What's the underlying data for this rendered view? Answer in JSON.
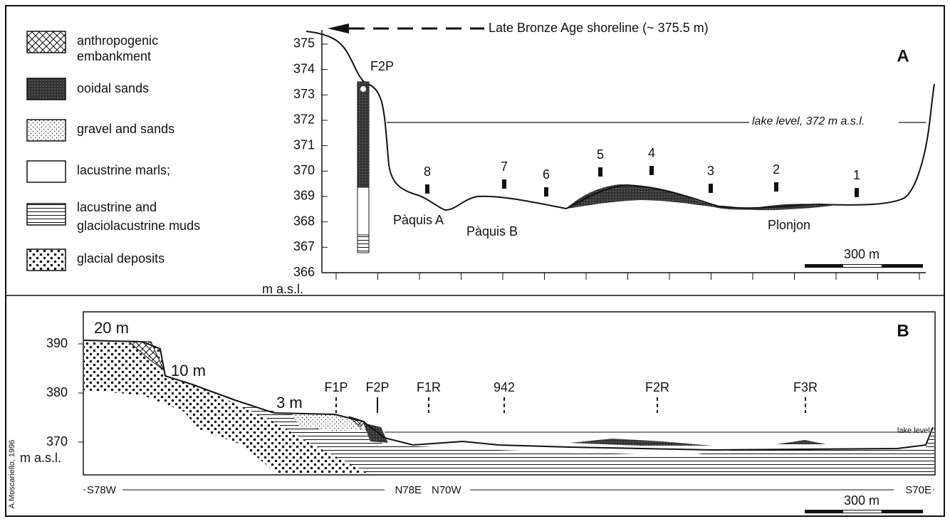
{
  "legend": [
    {
      "label": [
        "anthropogenic",
        "embankment"
      ]
    },
    {
      "label": [
        "ooidal sands"
      ]
    },
    {
      "label": [
        "gravel and sands"
      ]
    },
    {
      "label": [
        "lacustrine marls;"
      ]
    },
    {
      "label": [
        "lacustrine and",
        "glaciolacustrine muds"
      ]
    },
    {
      "label": [
        "glacial deposits"
      ]
    }
  ],
  "panel_a": {
    "label": "A",
    "yticks": [
      366,
      367,
      368,
      369,
      370,
      371,
      372,
      373,
      374,
      375
    ],
    "axis_unit": "m a.s.l.",
    "shoreline": "Late Bronze Age  shoreline (~ 375.5 m)",
    "core": "F2P",
    "lake_level": "lake level, 372 m a.s.l.",
    "sites": [
      "8",
      "7",
      "6",
      "5",
      "4",
      "3",
      "2",
      "1"
    ],
    "places": [
      "Pàquis A",
      "Pàquis B",
      "Plonjon"
    ],
    "scale": "300 m"
  },
  "panel_b": {
    "label": "B",
    "yticks": [
      390,
      380,
      370
    ],
    "axis_unit": "m a.s.l.",
    "terraces": [
      "20 m",
      "10 m",
      "3 m"
    ],
    "cores": [
      "F1P",
      "F2P",
      "F1R",
      "942",
      "F2R",
      "F3R"
    ],
    "lake_level": "lake level",
    "directions": [
      "S78W",
      "N78E",
      "N70W",
      "S70E"
    ],
    "scale": "300 m"
  },
  "credit": "A.Moscariello, 1996"
}
